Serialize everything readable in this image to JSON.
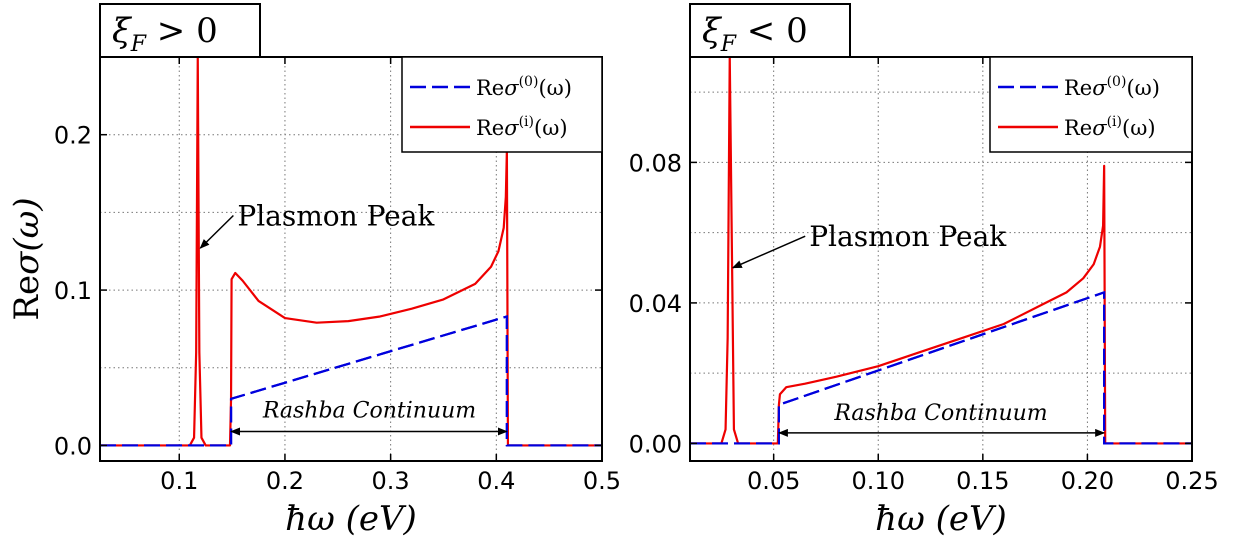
{
  "chart_data": [
    {
      "type": "line",
      "title": "ξ_F > 0",
      "xlabel": "ħω (eV)",
      "ylabel": "Reσ(ω)",
      "xlim": [
        0.025,
        0.5
      ],
      "ylim": [
        -0.01,
        0.25
      ],
      "xticks": [
        0.1,
        0.2,
        0.3,
        0.4,
        0.5
      ],
      "xtick_labels": [
        "0.1",
        "0.2",
        "0.3",
        "0.4",
        "0.5"
      ],
      "yticks": [
        0.0,
        0.1,
        0.2
      ],
      "ytick_labels": [
        "0.0",
        "0.1",
        "0.2"
      ],
      "grid": true,
      "legend_position": "top-right",
      "series": [
        {
          "name": "Reσ⁽⁰⁾(ω)",
          "color": "#0000dd",
          "style": "dashed",
          "x": [
            0.025,
            0.148,
            0.149,
            0.149,
            0.41,
            0.41,
            0.411,
            0.5
          ],
          "y": [
            0.0,
            0.0,
            0.0,
            0.03,
            0.083,
            0.0,
            0.0,
            0.0
          ]
        },
        {
          "name": "Reσ⁽ⁱ⁾(ω)",
          "color": "#ee0000",
          "style": "solid",
          "x": [
            0.025,
            0.11,
            0.114,
            0.116,
            0.1175,
            0.119,
            0.121,
            0.125,
            0.148,
            0.149,
            0.1495,
            0.153,
            0.16,
            0.175,
            0.2,
            0.23,
            0.26,
            0.29,
            0.32,
            0.35,
            0.38,
            0.395,
            0.402,
            0.407,
            0.409,
            0.41,
            0.411,
            0.5
          ],
          "y": [
            0.0,
            0.0,
            0.005,
            0.06,
            0.25,
            0.06,
            0.005,
            0.0,
            0.0,
            0.03,
            0.107,
            0.111,
            0.106,
            0.093,
            0.082,
            0.079,
            0.08,
            0.083,
            0.088,
            0.094,
            0.104,
            0.115,
            0.125,
            0.14,
            0.16,
            0.19,
            0.0,
            0.0
          ]
        }
      ],
      "annotations": [
        {
          "text": "Plasmon Peak",
          "x": 0.155,
          "y": 0.148,
          "arrow_to": [
            0.118,
            0.127
          ]
        },
        {
          "text": "Rashba Continuum",
          "x": 0.28,
          "y": 0.023,
          "arrow_from": 0.149,
          "arrow_to": 0.41,
          "arrow_y": 0.009
        }
      ]
    },
    {
      "type": "line",
      "title": "ξ_F < 0",
      "xlabel": "ħω (eV)",
      "ylabel": "",
      "xlim": [
        0.01,
        0.25
      ],
      "ylim": [
        -0.005,
        0.11
      ],
      "xticks": [
        0.05,
        0.1,
        0.15,
        0.2,
        0.25
      ],
      "xtick_labels": [
        "0.05",
        "0.10",
        "0.15",
        "0.20",
        "0.25"
      ],
      "yticks": [
        0.0,
        0.04,
        0.08
      ],
      "ytick_labels": [
        "0.00",
        "0.04",
        "0.08"
      ],
      "grid": true,
      "legend_position": "top-right",
      "series": [
        {
          "name": "Reσ⁽⁰⁾(ω)",
          "color": "#0000dd",
          "style": "dashed",
          "x": [
            0.01,
            0.052,
            0.0525,
            0.0525,
            0.208,
            0.208,
            0.2085,
            0.25
          ],
          "y": [
            0.0,
            0.0,
            0.0,
            0.011,
            0.043,
            0.0,
            0.0,
            0.0
          ]
        },
        {
          "name": "Reσ⁽ⁱ⁾(ω)",
          "color": "#ee0000",
          "style": "solid",
          "x": [
            0.01,
            0.025,
            0.027,
            0.028,
            0.029,
            0.031,
            0.033,
            0.052,
            0.0525,
            0.053,
            0.056,
            0.065,
            0.08,
            0.1,
            0.12,
            0.14,
            0.16,
            0.18,
            0.19,
            0.198,
            0.203,
            0.206,
            0.2075,
            0.208,
            0.2085,
            0.25
          ],
          "y": [
            0.0,
            0.0,
            0.004,
            0.03,
            0.11,
            0.004,
            0.0,
            0.0,
            0.011,
            0.014,
            0.016,
            0.017,
            0.019,
            0.022,
            0.026,
            0.03,
            0.034,
            0.04,
            0.043,
            0.047,
            0.051,
            0.056,
            0.062,
            0.079,
            0.0,
            0.0
          ]
        }
      ],
      "annotations": [
        {
          "text": "Plasmon Peak",
          "x": 0.067,
          "y": 0.059,
          "arrow_to": [
            0.0295,
            0.05
          ]
        },
        {
          "text": "Rashba Continuum",
          "x": 0.13,
          "y": 0.009,
          "arrow_from": 0.0525,
          "arrow_to": 0.208,
          "arrow_y": 0.003
        }
      ]
    }
  ]
}
